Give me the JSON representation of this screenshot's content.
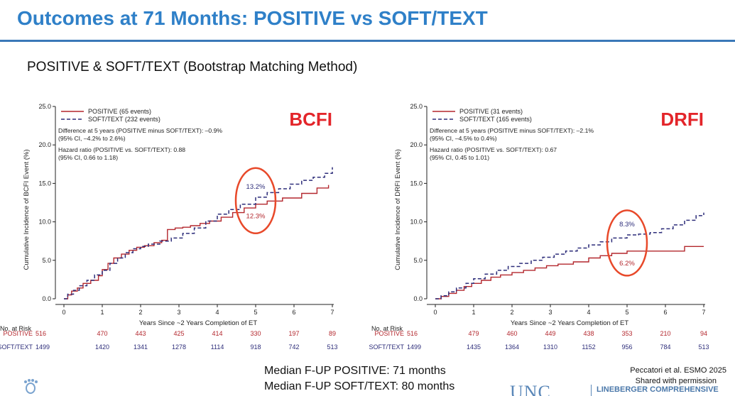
{
  "header": {
    "title": "Outcomes at 71 Months: POSITIVE vs SOFT/TEXT"
  },
  "subtitle": "POSITIVE & SOFT/TEXT (Bootstrap Matching Method)",
  "colors": {
    "accent": "#2f80c8",
    "positive": "#b3272d",
    "soft_text": "#2d2d7a",
    "highlight": "#e3252a"
  },
  "chart_data": [
    {
      "type": "line",
      "panel_label": "BCFI",
      "ylabel": "Cumulative Incidence of BCFI Event (%)",
      "xlabel": "Years Since ~2 Years Completion of ET",
      "xlim": [
        0,
        7
      ],
      "ylim": [
        0,
        25
      ],
      "x_ticks": [
        "0",
        "1",
        "2",
        "3",
        "4",
        "5",
        "6",
        "7"
      ],
      "y_ticks": [
        "0.0",
        "5.0",
        "10.0",
        "15.0",
        "20.0",
        "25.0"
      ],
      "legend": [
        "POSITIVE (65 events)",
        "SOFT/TEXT (232 events)"
      ],
      "stats": [
        "Difference at 5 years (POSITIVE minus SOFT/TEXT): –0.9%",
        "(95% CI, –4.2% to 2.6%)",
        "Hazard ratio (POSITIVE vs. SOFT/TEXT): 0.88",
        "(95% CI, 0.66 to 1.18)"
      ],
      "annotations": {
        "soft_text": "13.2%",
        "positive": "12.3%"
      },
      "series": [
        {
          "name": "POSITIVE",
          "style": "solid",
          "x": [
            0,
            0.1,
            0.2,
            0.35,
            0.5,
            0.7,
            0.9,
            1.0,
            1.15,
            1.3,
            1.5,
            1.7,
            1.9,
            2.1,
            2.35,
            2.55,
            2.7,
            2.9,
            3.1,
            3.3,
            3.55,
            3.8,
            4.1,
            4.4,
            4.7,
            5.0,
            5.3,
            5.7,
            6.2,
            6.6,
            6.9
          ],
          "y": [
            0,
            0.5,
            1.0,
            1.4,
            2.0,
            2.4,
            3.0,
            3.8,
            4.6,
            5.3,
            5.8,
            6.3,
            6.7,
            6.9,
            7.3,
            7.6,
            9.0,
            9.2,
            9.3,
            9.5,
            9.8,
            10.1,
            10.6,
            11.2,
            11.8,
            12.3,
            12.7,
            13.1,
            13.7,
            14.4,
            14.8
          ]
        },
        {
          "name": "SOFT/TEXT",
          "style": "dashed",
          "x": [
            0,
            0.1,
            0.25,
            0.4,
            0.6,
            0.8,
            1.0,
            1.2,
            1.4,
            1.6,
            1.8,
            2.0,
            2.2,
            2.5,
            2.8,
            3.1,
            3.4,
            3.7,
            4.0,
            4.3,
            4.6,
            5.0,
            5.3,
            5.6,
            5.9,
            6.2,
            6.5,
            6.8,
            7.0
          ],
          "y": [
            0,
            0.6,
            1.1,
            1.7,
            2.4,
            3.1,
            3.7,
            4.6,
            5.3,
            6.0,
            6.5,
            6.8,
            7.1,
            7.5,
            7.9,
            8.5,
            9.2,
            10.1,
            11.0,
            11.6,
            12.3,
            13.2,
            13.8,
            14.3,
            14.9,
            15.4,
            15.8,
            16.3,
            17.1
          ]
        }
      ],
      "risk_table": {
        "header": "No. at Risk",
        "rows": [
          {
            "label": "POSITIVE",
            "values": [
              "516",
              "470",
              "443",
              "425",
              "414",
              "330",
              "197",
              "89"
            ]
          },
          {
            "label": "SOFT/TEXT",
            "values": [
              "1499",
              "1420",
              "1341",
              "1278",
              "1114",
              "918",
              "742",
              "513"
            ]
          }
        ]
      }
    },
    {
      "type": "line",
      "panel_label": "DRFI",
      "ylabel": "Cumulative Incidence of DRFI Event (%)",
      "xlabel": "Years Since ~2 Years Completion of ET",
      "xlim": [
        0,
        7
      ],
      "ylim": [
        0,
        25
      ],
      "x_ticks": [
        "0",
        "1",
        "2",
        "3",
        "4",
        "5",
        "6",
        "7"
      ],
      "y_ticks": [
        "0.0",
        "5.0",
        "10.0",
        "15.0",
        "20.0",
        "25.0"
      ],
      "legend": [
        "POSITIVE (31 events)",
        "SOFT/TEXT (165 events)"
      ],
      "stats": [
        "Difference at 5 years (POSITIVE minus SOFT/TEXT): –2.1%",
        "(95% CI, –4.5% to 0.4%)",
        "Hazard ratio (POSITIVE vs. SOFT/TEXT): 0.67",
        "(95% CI, 0.45 to 1.01)"
      ],
      "annotations": {
        "soft_text": "8.3%",
        "positive": "6.2%"
      },
      "series": [
        {
          "name": "POSITIVE",
          "style": "solid",
          "x": [
            0,
            0.15,
            0.35,
            0.55,
            0.75,
            0.95,
            1.2,
            1.45,
            1.7,
            2.0,
            2.3,
            2.6,
            2.9,
            3.2,
            3.6,
            4.0,
            4.3,
            4.6,
            5.0,
            5.5,
            6.0,
            6.3,
            6.5,
            7.0
          ],
          "y": [
            0,
            0.3,
            0.7,
            1.1,
            1.6,
            2.0,
            2.4,
            2.8,
            3.1,
            3.4,
            3.7,
            4.0,
            4.3,
            4.5,
            4.8,
            5.3,
            5.6,
            5.9,
            6.2,
            6.2,
            6.2,
            6.2,
            6.8,
            6.8
          ]
        },
        {
          "name": "SOFT/TEXT",
          "style": "dashed",
          "x": [
            0,
            0.15,
            0.35,
            0.55,
            0.8,
            1.0,
            1.3,
            1.6,
            1.9,
            2.2,
            2.5,
            2.8,
            3.1,
            3.4,
            3.7,
            4.0,
            4.3,
            4.6,
            5.0,
            5.3,
            5.6,
            5.9,
            6.2,
            6.5,
            6.8,
            7.0
          ],
          "y": [
            0,
            0.4,
            0.9,
            1.4,
            2.0,
            2.6,
            3.2,
            3.7,
            4.2,
            4.6,
            5.0,
            5.4,
            5.8,
            6.2,
            6.6,
            7.0,
            7.4,
            7.9,
            8.3,
            8.4,
            8.6,
            9.1,
            9.6,
            10.2,
            10.8,
            11.2
          ]
        }
      ],
      "risk_table": {
        "header": "No. at Risk",
        "rows": [
          {
            "label": "POSITIVE",
            "values": [
              "516",
              "479",
              "460",
              "449",
              "438",
              "353",
              "210",
              "94"
            ]
          },
          {
            "label": "SOFT/TEXT",
            "values": [
              "1499",
              "1435",
              "1364",
              "1310",
              "1152",
              "956",
              "784",
              "513"
            ]
          }
        ]
      }
    }
  ],
  "footer": {
    "median_positive": "Median F-UP POSITIVE: 71 months",
    "median_soft": "Median F-UP SOFT/TEXT: 80 months",
    "citation_1": "Peccatori et al. ESMO 2025",
    "citation_2": "Shared with permission",
    "unc_logo_text": "UNC",
    "lineberger_text": "LINEBERGER COMPREHENSIVE"
  }
}
